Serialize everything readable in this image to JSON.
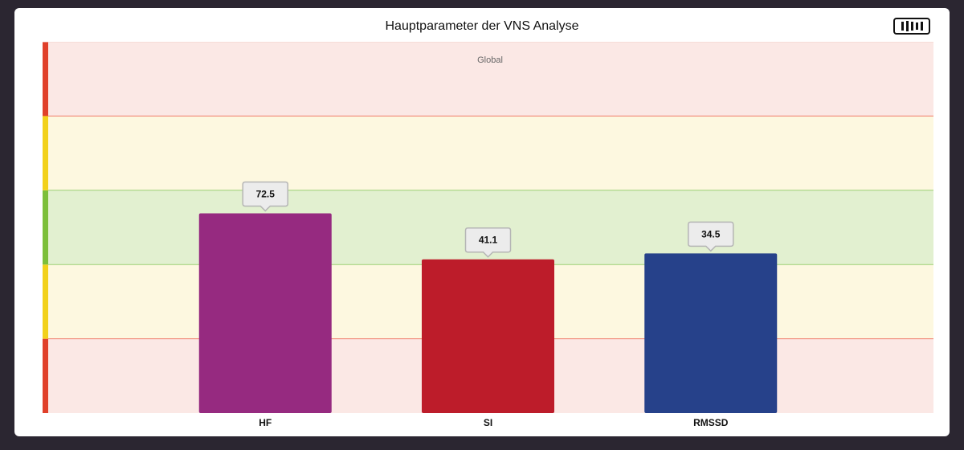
{
  "chart_data": {
    "type": "bar",
    "title": "Hauptparameter der VNS Analyse",
    "subtitle": "Global",
    "categories": [
      "HF",
      "SI",
      "RMSSD"
    ],
    "values": [
      72.5,
      41.1,
      34.5
    ],
    "zone_level": [
      2.69,
      2.07,
      2.15
    ],
    "zone_scale": [
      0,
      5
    ],
    "zones": [
      {
        "from": 0,
        "to": 1,
        "color": "#fbe8e5",
        "marker": "#e0402a"
      },
      {
        "from": 1,
        "to": 2,
        "color": "#fdf8e0",
        "marker": "#f2d11a"
      },
      {
        "from": 2,
        "to": 3,
        "color": "#e2f0d0",
        "marker": "#7cbf3a"
      },
      {
        "from": 3,
        "to": 4,
        "color": "#fdf8e0",
        "marker": "#f2d11a"
      },
      {
        "from": 4,
        "to": 5,
        "color": "#fbe8e5",
        "marker": "#e0402a"
      }
    ],
    "bar_colors": [
      "#962a80",
      "#bd1c2a",
      "#26418a"
    ],
    "grid": false,
    "legend": "none"
  },
  "toolbar": {
    "menu_icon": "bar-chart-menu-icon"
  }
}
